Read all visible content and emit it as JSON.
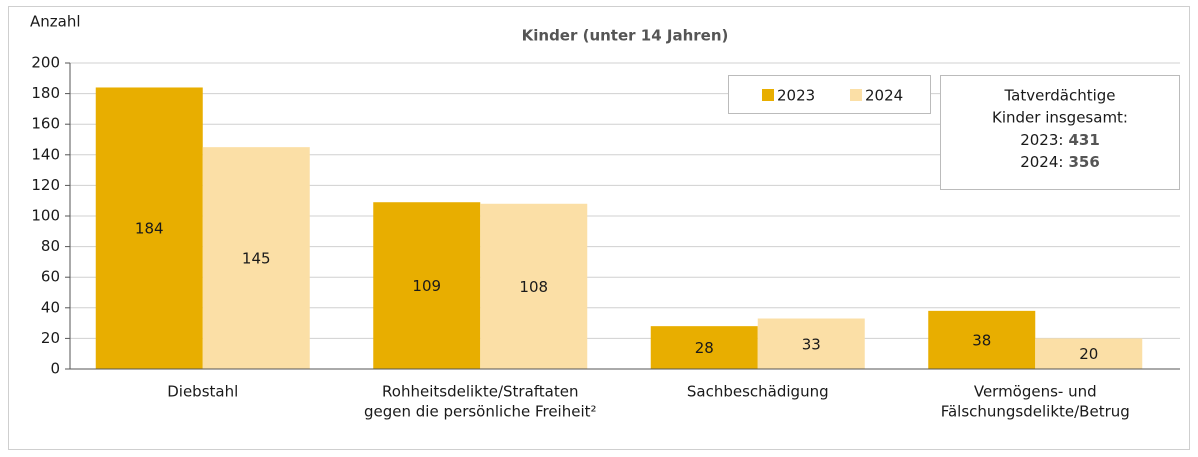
{
  "chart_data": {
    "type": "bar",
    "title": "Kinder (unter 14 Jahren)",
    "y_label": "Anzahl",
    "categories": [
      [
        "Diebstahl"
      ],
      [
        "Rohheitsdelikte/Straftaten",
        "gegen die persönliche Freiheit²"
      ],
      [
        "Sachbeschädigung"
      ],
      [
        "Vermögens- und",
        "Fälschungsdelikte/Betrug"
      ]
    ],
    "series": [
      {
        "name": "2023",
        "color": "#e8ae00",
        "values": [
          184,
          109,
          28,
          38
        ]
      },
      {
        "name": "2024",
        "color": "#fbdfa6",
        "values": [
          145,
          108,
          33,
          20
        ]
      }
    ],
    "ylim": [
      0,
      200
    ],
    "yticks": [
      0,
      20,
      40,
      60,
      80,
      100,
      120,
      140,
      160,
      180,
      200
    ],
    "grid": true,
    "legend": "top-right",
    "info_box": {
      "lines": [
        "Tatverdächtige",
        "Kinder insgesamt:"
      ],
      "totals": [
        {
          "label": "2023:",
          "value": 431
        },
        {
          "label": "2024:",
          "value": 356
        }
      ]
    }
  }
}
